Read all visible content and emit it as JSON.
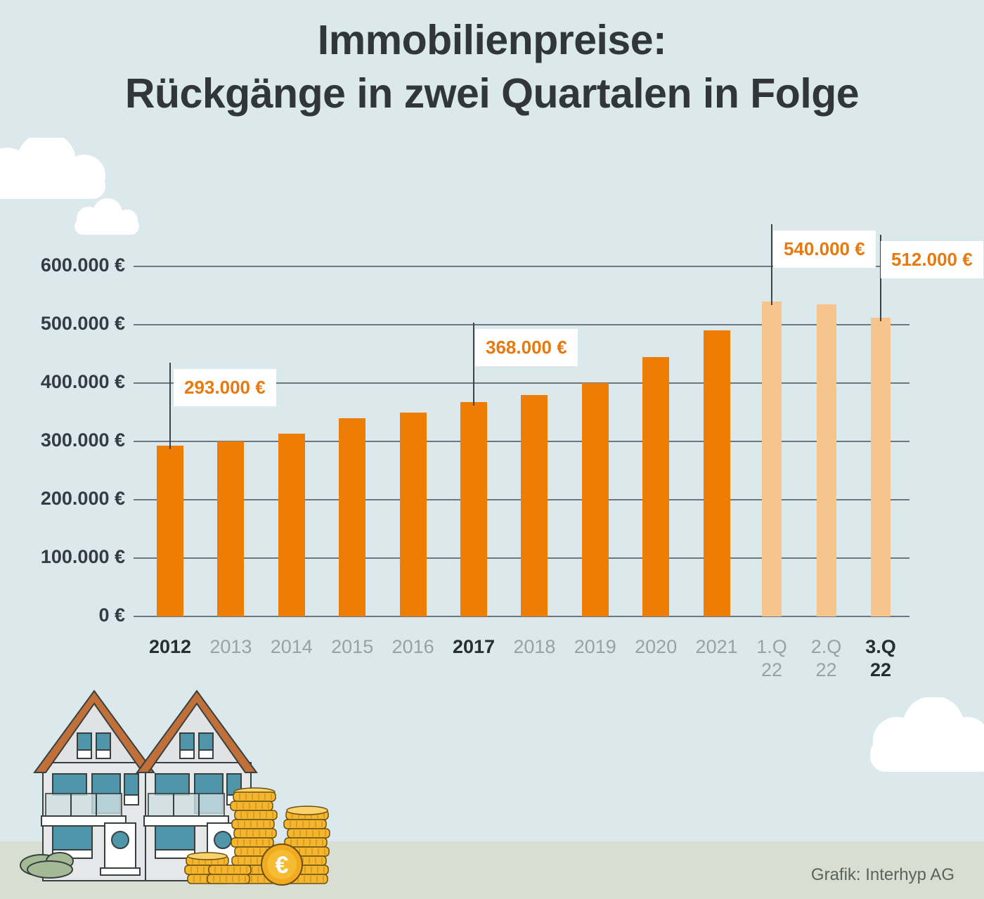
{
  "title": {
    "line1": "Immobilienpreise:",
    "line2": "Rückgänge in zwei Quartalen in Folge"
  },
  "source_credit": "Grafik: Interhyp AG",
  "illustration": {
    "euro_symbol": "€",
    "houses": "two-semi-detached-houses-with-coin-stacks",
    "clouds": "white-clouds"
  },
  "colors": {
    "background": "#dce9ec",
    "ground": "#d9ded2",
    "bar_solid": "#ee7d05",
    "bar_muted": "#f8c48d",
    "accent_orange": "#e8790f",
    "grid_line": "#6e777d",
    "text_dark": "#30363c",
    "text_gray": "#9aa1a6",
    "roof": "#c1703a",
    "window_teal": "#4f96aa",
    "coin_gold": "#f5b52c"
  },
  "chart_data": {
    "type": "bar",
    "title": "Immobilienpreise: Rückgänge in zwei Quartalen in Folge",
    "categories": [
      "2012",
      "2013",
      "2014",
      "2015",
      "2016",
      "2017",
      "2018",
      "2019",
      "2020",
      "2021",
      "1.Q 22",
      "2.Q 22",
      "3.Q 22"
    ],
    "values": [
      293000,
      300000,
      313000,
      340000,
      350000,
      368000,
      380000,
      400000,
      445000,
      490000,
      540000,
      535000,
      512000
    ],
    "muted_categories": [
      "1.Q 22",
      "2.Q 22",
      "3.Q 22"
    ],
    "highlighted_categories": [
      "2012",
      "2017",
      "3.Q 22"
    ],
    "annotations": [
      {
        "category": "2012",
        "label": "293.000 €"
      },
      {
        "category": "2017",
        "label": "368.000 €"
      },
      {
        "category": "1.Q 22",
        "label": "540.000 €"
      },
      {
        "category": "3.Q 22",
        "label": "512.000 €"
      }
    ],
    "ylim": [
      0,
      600000
    ],
    "ytick_step": 100000,
    "ytick_labels": [
      "0 €",
      "100.000 €",
      "200.000 €",
      "300.000 €",
      "400.000 €",
      "500.000 €",
      "600.000 €"
    ],
    "grid": true,
    "legend": false,
    "xlabel": "",
    "ylabel": ""
  }
}
